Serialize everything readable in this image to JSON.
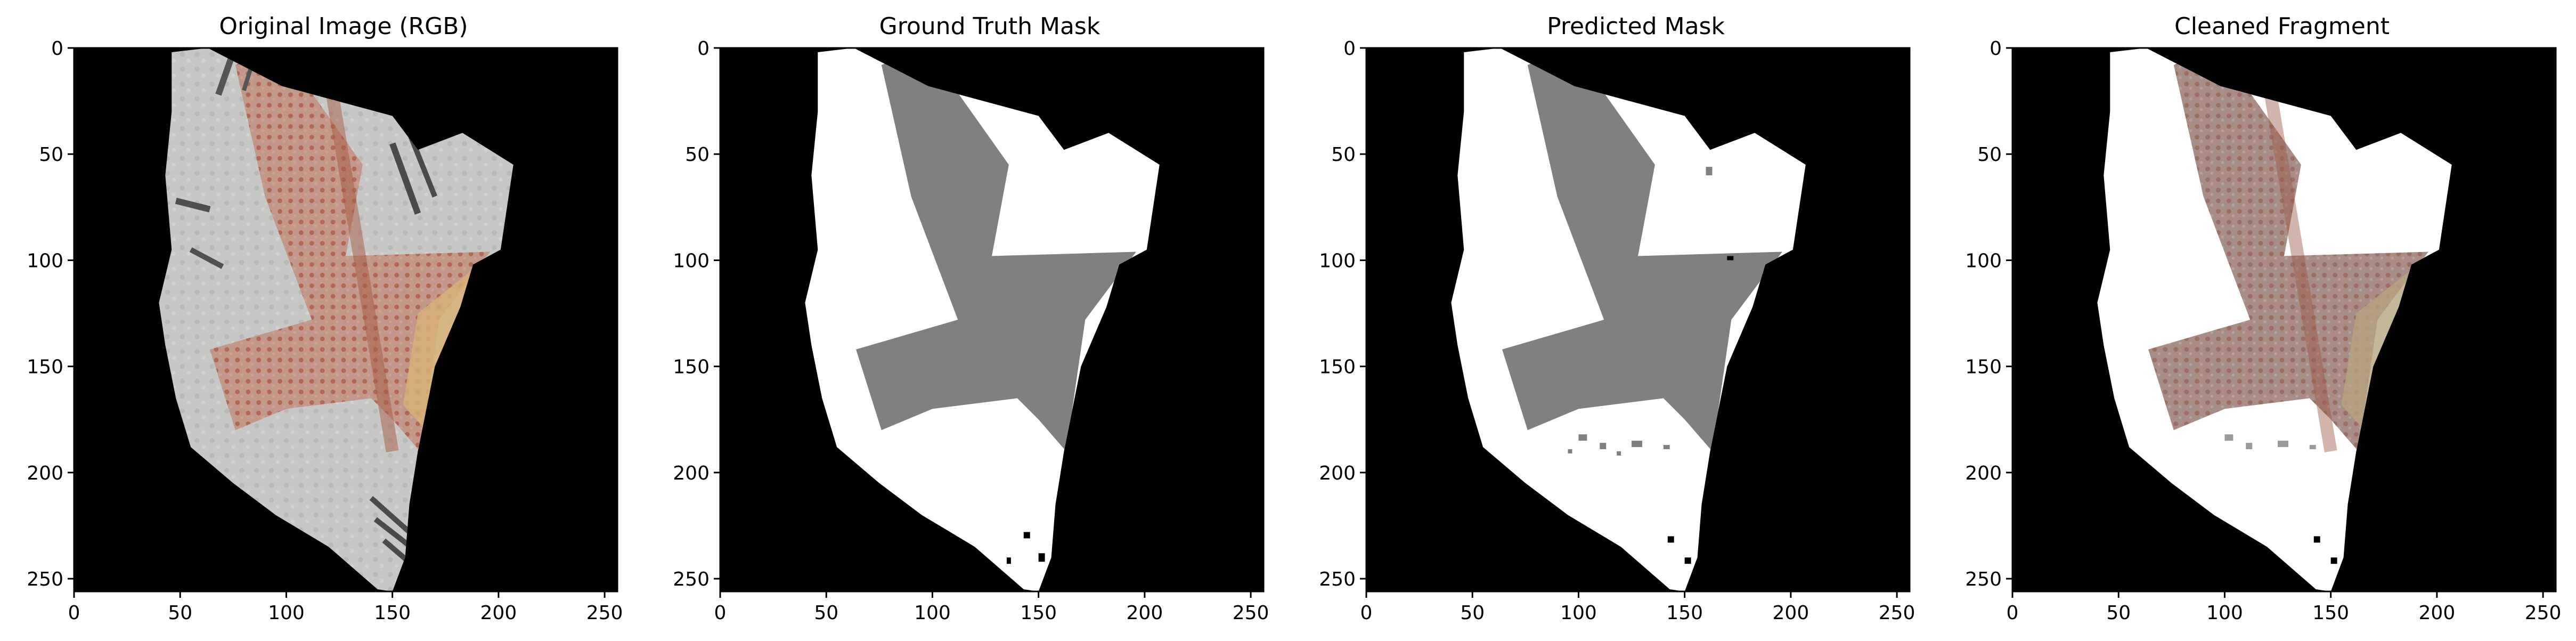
{
  "figure": {
    "panels": [
      {
        "id": "original",
        "title": "Original Image (RGB)"
      },
      {
        "id": "gt",
        "title": "Ground Truth Mask"
      },
      {
        "id": "pred",
        "title": "Predicted Mask"
      },
      {
        "id": "clean",
        "title": "Cleaned Fragment"
      }
    ],
    "axis": {
      "x_ticks": [
        "0",
        "50",
        "100",
        "150",
        "200",
        "250"
      ],
      "y_ticks": [
        "0",
        "50",
        "100",
        "150",
        "200",
        "250"
      ],
      "x_tick_values": [
        0,
        50,
        100,
        150,
        200,
        250
      ],
      "y_tick_values": [
        0,
        50,
        100,
        150,
        200,
        250
      ],
      "range": [
        0,
        256
      ]
    },
    "colors": {
      "background": "#000000",
      "fragment": "#ffffff",
      "cross_mask": "#808080",
      "paper": "#c9c9c7",
      "stain": "#b7745e",
      "tape": "#d8b06f"
    }
  }
}
